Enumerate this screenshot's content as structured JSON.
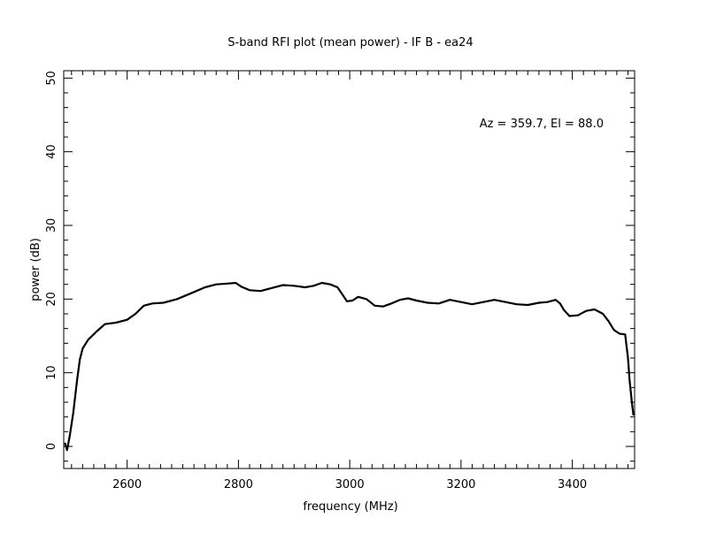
{
  "chart_data": {
    "type": "line",
    "title": "S-band RFI plot (mean power) - IF B - ea24",
    "xlabel": "frequency (MHz)",
    "ylabel": "power (dB)",
    "annotation": "Az = 359.7, El = 88.0",
    "xlim": [
      2486,
      3512
    ],
    "ylim": [
      -3,
      51
    ],
    "xticks": [
      2600,
      2800,
      3000,
      3200,
      3400
    ],
    "xtick_labels": [
      "2600",
      "2800",
      "3000",
      "3200",
      "3400"
    ],
    "yticks": [
      0,
      10,
      20,
      30,
      40,
      50
    ],
    "ytick_labels": [
      "0",
      "10",
      "20",
      "30",
      "40",
      "50"
    ],
    "grid": false,
    "line_color": "#000000",
    "series": [
      {
        "x": [
          2488,
          2492,
          2497,
          2503,
          2510,
          2515,
          2520,
          2530,
          2545,
          2560,
          2580,
          2600,
          2615,
          2630,
          2645,
          2665,
          2690,
          2715,
          2740,
          2760,
          2780,
          2795,
          2805,
          2820,
          2840,
          2860,
          2880,
          2900,
          2920,
          2935,
          2950,
          2965,
          2978,
          2988,
          2995,
          3005,
          3015,
          3030,
          3045,
          3060,
          3075,
          3090,
          3105,
          3120,
          3140,
          3160,
          3180,
          3200,
          3220,
          3240,
          3260,
          3280,
          3300,
          3320,
          3340,
          3355,
          3370,
          3378,
          3385,
          3395,
          3410,
          3425,
          3440,
          3455,
          3465,
          3475,
          3485,
          3495,
          3500,
          3503,
          3507,
          3510
        ],
        "y": [
          0.5,
          -0.5,
          1.5,
          4.5,
          9.0,
          11.8,
          13.3,
          14.5,
          15.6,
          16.6,
          16.8,
          17.2,
          18.0,
          19.1,
          19.4,
          19.5,
          20.0,
          20.8,
          21.6,
          22.0,
          22.1,
          22.2,
          21.7,
          21.2,
          21.1,
          21.5,
          21.9,
          21.8,
          21.6,
          21.8,
          22.2,
          22.0,
          21.6,
          20.5,
          19.7,
          19.8,
          20.3,
          20.0,
          19.1,
          19.0,
          19.4,
          19.9,
          20.1,
          19.8,
          19.5,
          19.4,
          19.9,
          19.6,
          19.3,
          19.6,
          19.9,
          19.6,
          19.3,
          19.2,
          19.5,
          19.6,
          19.9,
          19.4,
          18.5,
          17.7,
          17.8,
          18.4,
          18.6,
          18.0,
          17.0,
          15.8,
          15.3,
          15.2,
          12.0,
          9.0,
          6.0,
          4.2
        ]
      }
    ]
  }
}
